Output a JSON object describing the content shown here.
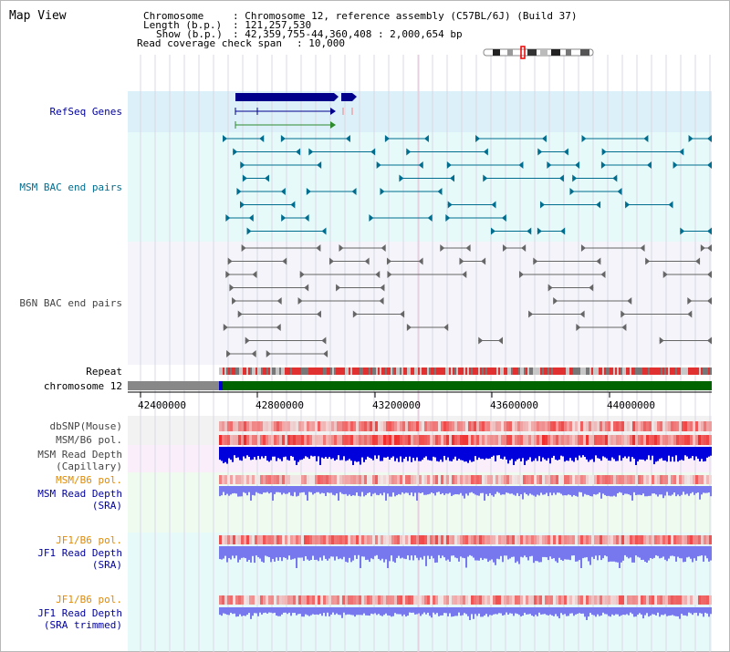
{
  "title": "Map View",
  "header": {
    "chromosome_key": "Chromosome",
    "chromosome_val": ": Chromosome 12, reference assembly (C57BL/6J) (Build 37)",
    "length_key": "Length (b.p.)",
    "length_val": ": 121,257,530",
    "show_key": "Show (b.p.)",
    "show_val": ": 42,359,755-44,360,408 : 2,000,654 bp",
    "coverage_key": "Read coverage check span",
    "coverage_val": ": 10,000"
  },
  "tracks": {
    "refseq": "RefSeq Genes",
    "msm_bac": "MSM BAC end pairs",
    "b6n_bac": "B6N BAC end pairs",
    "repeat": "Repeat",
    "chromosome": "chromosome 12",
    "dbsnp": "dbSNP(Mouse)",
    "msm_pol1": "MSM/B6 pol.",
    "msm_depth_cap_1": "MSM Read Depth",
    "msm_depth_cap_2": "(Capillary)",
    "msm_pol2": "MSM/B6 pol.",
    "msm_depth_sra_1": "MSM Read Depth",
    "msm_depth_sra_2": "(SRA)",
    "jf1_pol1": "JF1/B6 pol.",
    "jf1_depth_1": "JF1 Read Depth",
    "jf1_depth_2": "(SRA)",
    "jf1_pol2": "JF1/B6 pol.",
    "jf1_trim_1": "JF1 Read Depth",
    "jf1_trim_2": "(SRA trimmed)"
  },
  "axis": {
    "ticks": [
      "42400000",
      "42800000",
      "43200000",
      "43600000",
      "44000000"
    ]
  },
  "colors": {
    "refseq": "#00008b",
    "msm_bac": "#006d8f",
    "b6n_bac": "#666666",
    "label_blue": "#0000a0",
    "label_orange": "#e08a00",
    "chromosome": "#006400",
    "depth_dark": "#0000dd",
    "depth_light": "#7777ee",
    "snp": "#ee2222"
  }
}
